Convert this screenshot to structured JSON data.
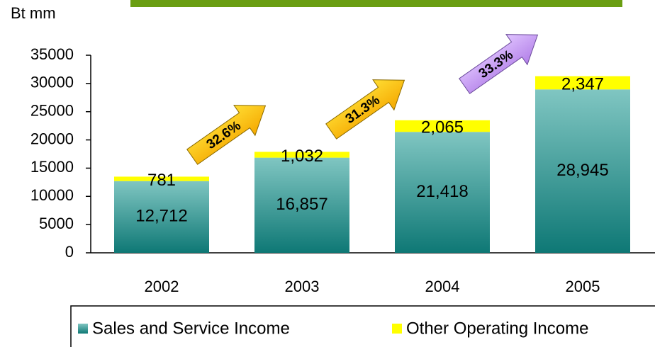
{
  "chart_data": {
    "type": "stacked_bar",
    "y_axis_label": "Bt mm",
    "categories": [
      "2002",
      "2003",
      "2004",
      "2005"
    ],
    "series": [
      {
        "name": "Sales and Service Income",
        "color": "#2a8f8c",
        "values": [
          12712,
          16857,
          21418,
          28945
        ],
        "value_labels": [
          "12,712",
          "16,857",
          "21,418",
          "28,945"
        ]
      },
      {
        "name": "Other Operating Income",
        "color": "#ffff00",
        "values": [
          781,
          1032,
          2065,
          2347
        ],
        "value_labels": [
          "781",
          "1,032",
          "2,065",
          "2,347"
        ]
      }
    ],
    "ylim": [
      0,
      35000
    ],
    "yticks": [
      0,
      5000,
      10000,
      15000,
      20000,
      25000,
      30000,
      35000
    ],
    "annotations": [
      "32.6%",
      "31.3%",
      "33.3%"
    ]
  }
}
